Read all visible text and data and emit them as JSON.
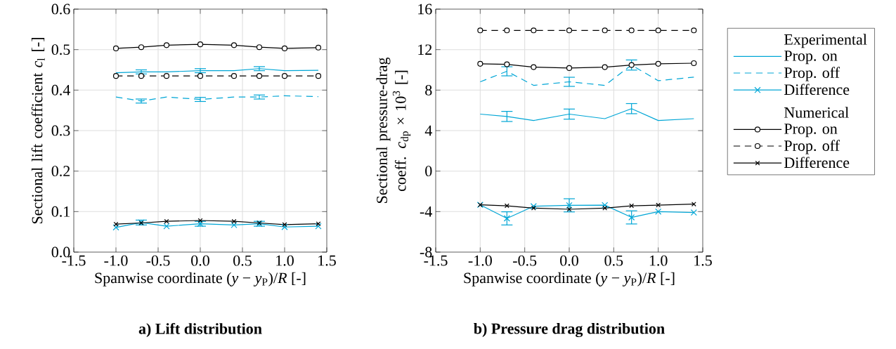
{
  "chart_data": [
    {
      "type": "line",
      "title": "a) Lift distribution",
      "xlabel": "Spanwise coordinate (*y* − *y*$_{P}$)/*R* [-]",
      "ylabel": "Sectional lift coefficient *c*$_{l}$ [-]",
      "x": [
        -1.0,
        -0.7,
        -0.4,
        0.0,
        0.4,
        0.7,
        1.0,
        1.4
      ],
      "xlim": [
        -1.5,
        1.5
      ],
      "xticks": [
        -1.5,
        {
          "value": -1.0,
          "label": "-1.0"
        },
        -0.5,
        {
          "value": 0.0,
          "label": "0.0"
        },
        0.5,
        {
          "value": 1.0,
          "label": "1.0"
        },
        1.5
      ],
      "ylim": [
        0.0,
        0.6
      ],
      "yticks": [
        {
          "value": 0.0,
          "label": "0.0"
        },
        0.1,
        0.2,
        0.3,
        0.4,
        0.5,
        0.6
      ],
      "grid": true,
      "legend": false,
      "series": [
        {
          "color": "#00a6d6",
          "marker": "none",
          "line_style": "solid",
          "values": [
            0.443,
            0.445,
            0.445,
            0.448,
            0.448,
            0.453,
            0.448,
            0.449
          ],
          "errors": [
            null,
            0.005,
            null,
            0.005,
            null,
            0.005,
            null,
            null
          ]
        },
        {
          "color": "#00a6d6",
          "marker": "none",
          "line_style": "dashed",
          "values": [
            0.383,
            0.373,
            0.383,
            0.377,
            0.383,
            0.383,
            0.386,
            0.384
          ],
          "errors": [
            null,
            0.005,
            null,
            0.005,
            null,
            0.005,
            null,
            null
          ]
        },
        {
          "color": "#00a6d6",
          "marker": "cross",
          "line_style": "solid",
          "values": [
            0.061,
            0.073,
            0.064,
            0.07,
            0.067,
            0.07,
            0.062,
            0.064
          ],
          "errors": [
            null,
            0.006,
            null,
            0.006,
            null,
            0.006,
            null,
            null
          ]
        },
        {
          "color": "#000000",
          "marker": "circle",
          "line_style": "solid",
          "values": [
            0.503,
            0.506,
            0.511,
            0.513,
            0.511,
            0.506,
            0.503,
            0.505
          ]
        },
        {
          "color": "#000000",
          "marker": "circle",
          "line_style": "dashed",
          "values": [
            0.435,
            0.435,
            0.435,
            0.435,
            0.435,
            0.435,
            0.435,
            0.435
          ]
        },
        {
          "color": "#000000",
          "marker": "cross",
          "line_style": "solid",
          "values": [
            0.069,
            0.072,
            0.076,
            0.078,
            0.076,
            0.072,
            0.068,
            0.07
          ]
        }
      ]
    },
    {
      "type": "line",
      "title": "b) Pressure drag distribution",
      "xlabel": "Spanwise coordinate (*y* − *y*$_{P}$)/*R* [-]",
      "ylabel": "Sectional pressure-drag coeff. *c*$_{dp}$ × 10$^{3}$ [-]",
      "legend_title": "Experimental",
      "annotations": [
        "Numerical"
      ],
      "x": [
        -1.0,
        -0.7,
        -0.4,
        0.0,
        0.4,
        0.7,
        1.0,
        1.4
      ],
      "xlim": [
        -1.5,
        1.5
      ],
      "xticks": [
        -1.5,
        {
          "value": -1.0,
          "label": "-1.0"
        },
        -0.5,
        {
          "value": 0.0,
          "label": "0.0"
        },
        0.5,
        {
          "value": 1.0,
          "label": "1.0"
        },
        1.5
      ],
      "ylim": [
        -8,
        16
      ],
      "yticks": [
        -8,
        -4,
        0,
        4,
        8,
        12,
        16
      ],
      "grid": true,
      "legend": "right",
      "series": [
        {
          "name": "Prop. on",
          "color": "#00a6d6",
          "marker": "none",
          "line_style": "solid",
          "values": [
            5.63,
            5.4,
            5.0,
            5.63,
            5.18,
            6.17,
            5.0,
            5.18
          ],
          "errors": [
            null,
            0.5,
            null,
            0.5,
            null,
            0.5,
            null,
            null
          ]
        },
        {
          "name": "Prop. off",
          "color": "#00a6d6",
          "marker": "none",
          "line_style": "dashed",
          "values": [
            8.82,
            9.86,
            8.47,
            8.82,
            8.47,
            10.48,
            8.93,
            9.28
          ],
          "errors": [
            null,
            0.45,
            null,
            0.45,
            null,
            0.5,
            null,
            null
          ]
        },
        {
          "name": "Difference",
          "color": "#00a6d6",
          "marker": "cross",
          "line_style": "solid",
          "values": [
            -3.33,
            -4.67,
            -3.47,
            -3.38,
            -3.36,
            -4.57,
            -4.0,
            -4.09
          ],
          "errors": [
            null,
            0.65,
            null,
            0.65,
            null,
            0.65,
            null,
            null
          ]
        },
        {
          "name": "Prop. on",
          "color": "#000000",
          "marker": "circle",
          "line_style": "solid",
          "values": [
            10.6,
            10.55,
            10.27,
            10.18,
            10.27,
            10.48,
            10.6,
            10.66
          ]
        },
        {
          "name": "Prop. off",
          "color": "#000000",
          "marker": "circle",
          "line_style": "dashed",
          "values": [
            13.9,
            13.9,
            13.9,
            13.9,
            13.9,
            13.9,
            13.9,
            13.9
          ]
        },
        {
          "name": "Difference",
          "color": "#000000",
          "marker": "cross",
          "line_style": "solid",
          "values": [
            -3.33,
            -3.43,
            -3.65,
            -3.77,
            -3.65,
            -3.43,
            -3.36,
            -3.26
          ]
        }
      ]
    }
  ]
}
